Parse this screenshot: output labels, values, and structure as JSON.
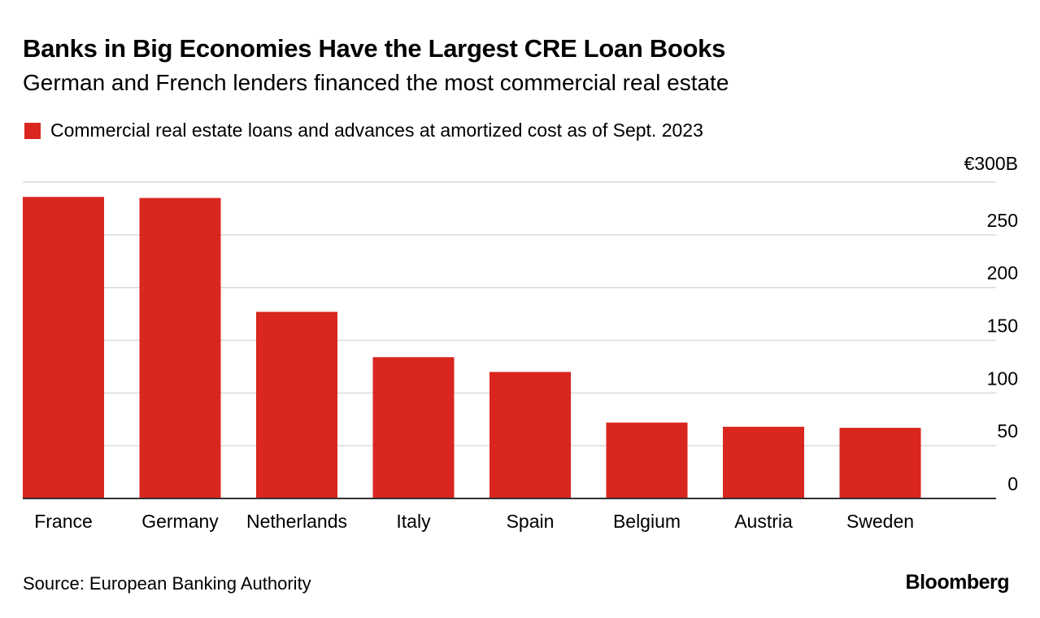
{
  "header": {
    "title": "Banks in Big Economies Have the Largest CRE Loan Books",
    "subtitle": "German and French lenders financed the most commercial real estate"
  },
  "footer": {
    "source": "Source: European Banking Authority",
    "brand": "Bloomberg"
  },
  "colors": {
    "bar": "#d9261e",
    "grid": "#d9d9d9",
    "axis": "#333333",
    "text": "#000000"
  },
  "chart_data": {
    "type": "bar",
    "title": "Banks in Big Economies Have the Largest CRE Loan Books",
    "subtitle": "German and French lenders financed the most commercial real estate",
    "categories": [
      "France",
      "Germany",
      "Netherlands",
      "Italy",
      "Spain",
      "Belgium",
      "Austria",
      "Sweden"
    ],
    "series": [
      {
        "name": "Commercial real estate loans and advances at amortized cost as of Sept. 2023",
        "values": [
          286,
          285,
          177,
          134,
          120,
          72,
          68,
          67
        ]
      }
    ],
    "ylim": [
      0,
      300
    ],
    "yticks": [
      0,
      50,
      100,
      150,
      200,
      250,
      300
    ],
    "ytick_labels": [
      "0",
      "50",
      "100",
      "150",
      "200",
      "250",
      "€300B"
    ],
    "y_axis_side": "right",
    "grid": true,
    "legend": "top-left"
  }
}
